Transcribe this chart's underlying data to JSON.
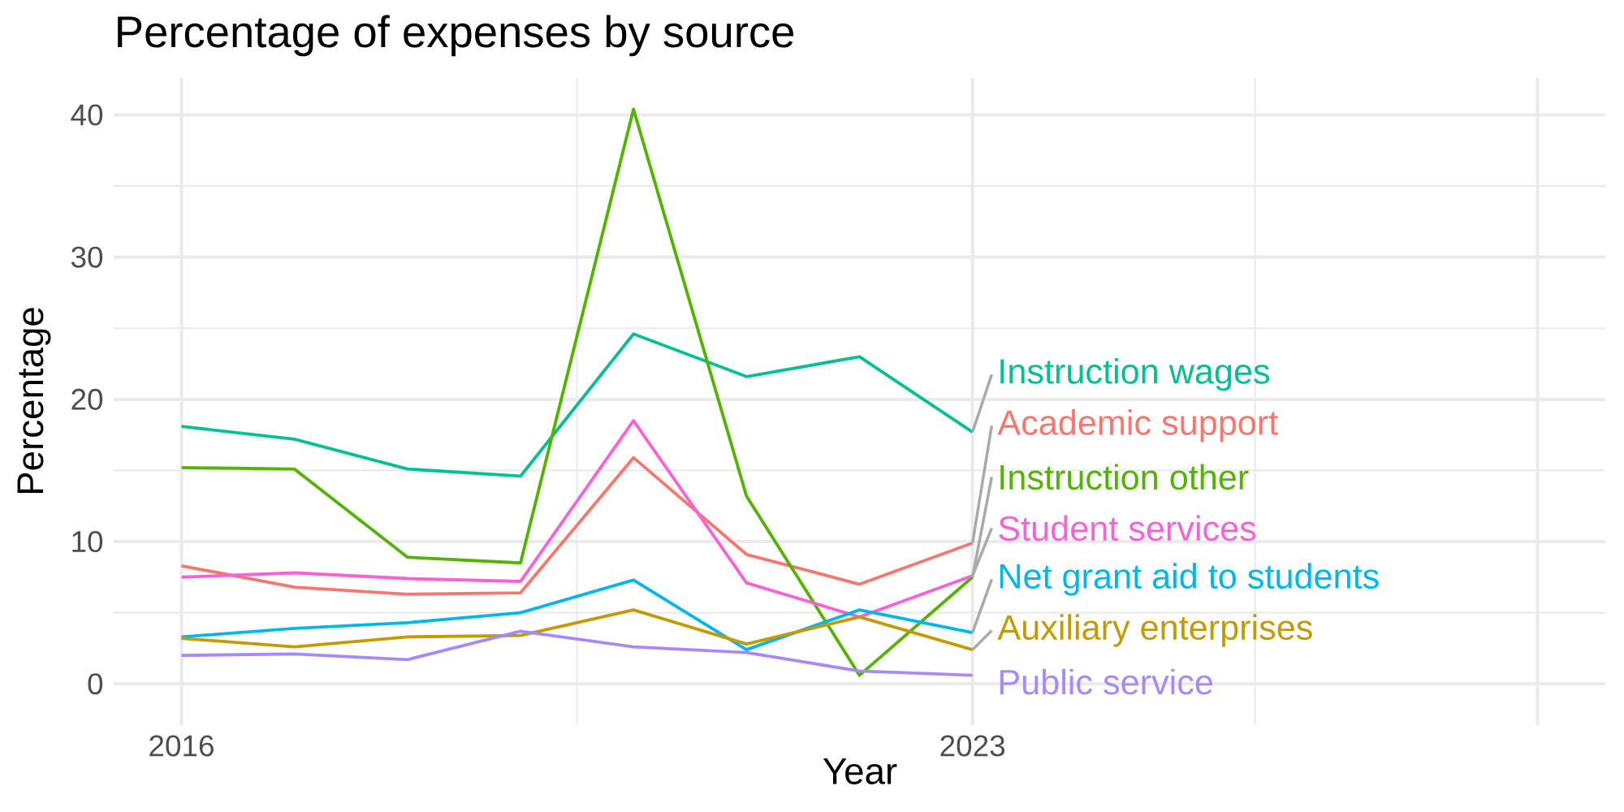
{
  "chart_data": {
    "type": "line",
    "title": "Percentage of expenses by source",
    "xlabel": "Year",
    "ylabel": "Percentage",
    "x": [
      2016,
      2017,
      2018,
      2019,
      2020,
      2021,
      2022,
      2023
    ],
    "series": [
      {
        "name": "Instruction wages",
        "color": "#00c094",
        "values": [
          18.1,
          17.2,
          15.1,
          14.6,
          24.6,
          21.6,
          23.0,
          17.7
        ]
      },
      {
        "name": "Academic support",
        "color": "#f8766d",
        "values": [
          8.3,
          6.8,
          6.3,
          6.4,
          15.9,
          9.1,
          7.0,
          9.9
        ]
      },
      {
        "name": "Instruction other",
        "color": "#53b400",
        "values": [
          15.2,
          15.1,
          8.9,
          8.5,
          40.4,
          13.2,
          0.6,
          7.5
        ]
      },
      {
        "name": "Student services",
        "color": "#fb61d7",
        "values": [
          7.5,
          7.8,
          7.4,
          7.2,
          18.5,
          7.1,
          4.7,
          7.6
        ]
      },
      {
        "name": "Net grant aid to students",
        "color": "#00b6eb",
        "values": [
          3.3,
          3.9,
          4.3,
          5.0,
          7.3,
          2.4,
          5.2,
          3.6
        ]
      },
      {
        "name": "Auxiliary enterprises",
        "color": "#c49a00",
        "values": [
          3.2,
          2.6,
          3.3,
          3.4,
          5.2,
          2.8,
          4.7,
          2.4
        ]
      },
      {
        "name": "Public service",
        "color": "#a58aff",
        "values": [
          2.0,
          2.1,
          1.7,
          3.7,
          2.6,
          2.2,
          0.9,
          0.6
        ]
      }
    ],
    "xlim": [
      2015.4,
      2028.6
    ],
    "ylim": [
      -2.9,
      42.6
    ],
    "xticks": [
      2016,
      2023,
      {
        "value": 2028,
        "label": null
      }
    ],
    "yticks": [
      0,
      10,
      20,
      30,
      40
    ],
    "grid": true
  }
}
